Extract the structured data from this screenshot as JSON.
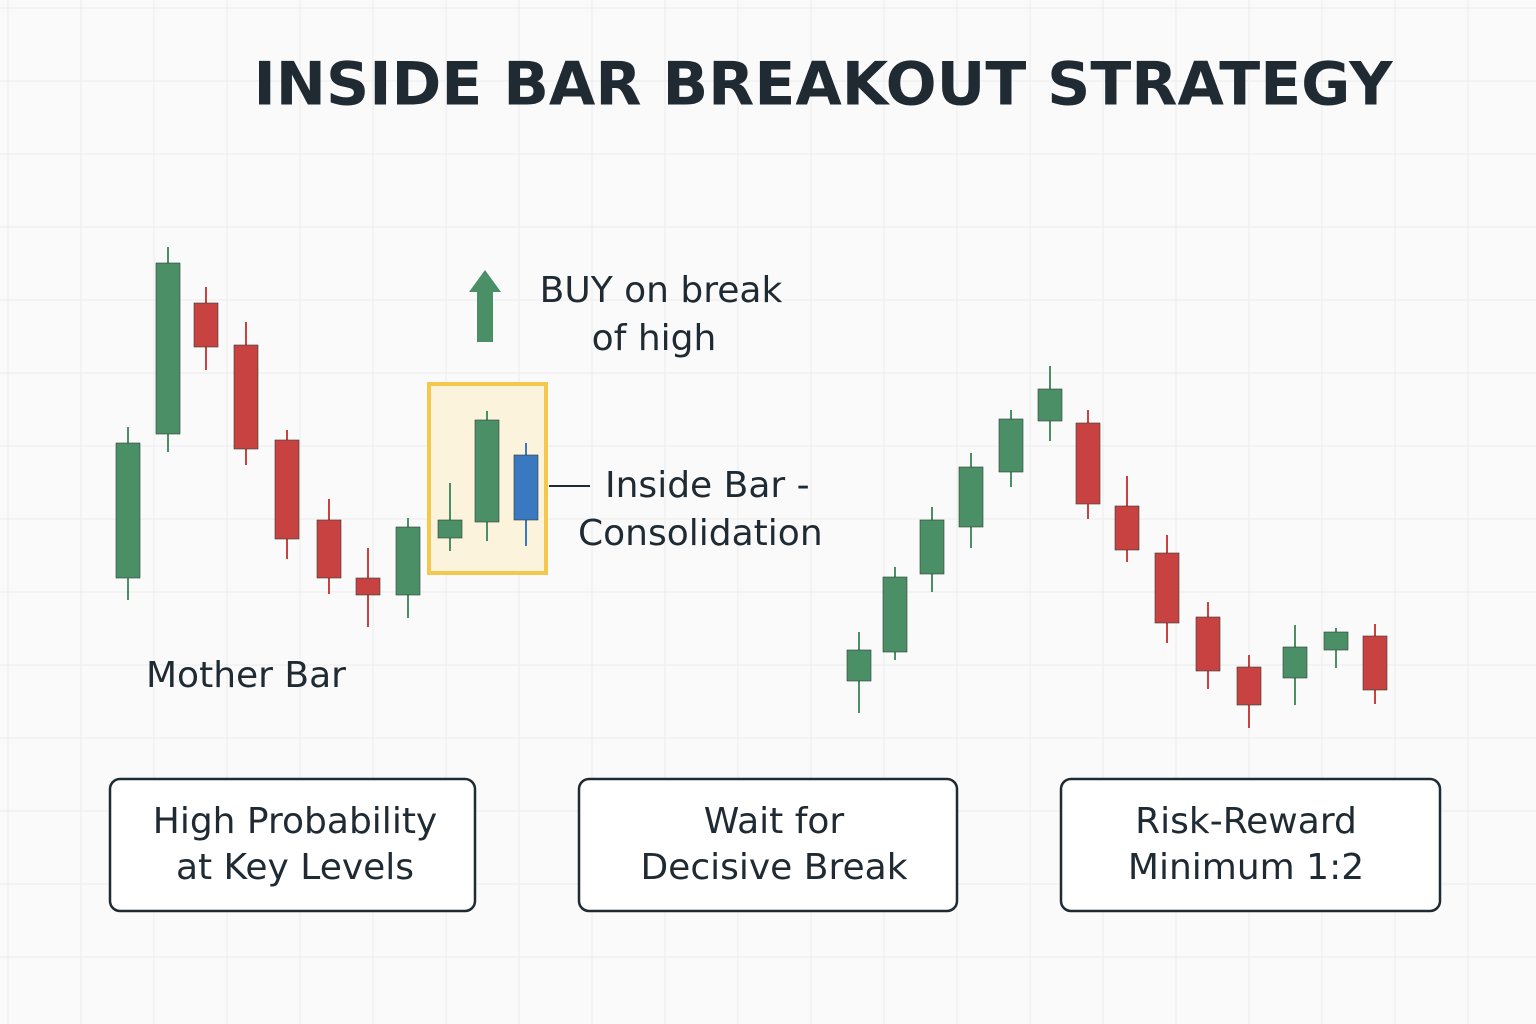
{
  "header": {
    "title": "INSIDE BAR BREAKOUT STRATEGY"
  },
  "annotations": {
    "buy": [
      "BUY on break",
      "of high"
    ],
    "inside_bar": [
      "Inside Bar -",
      "Consolidation"
    ],
    "mother_bar": "Mother Bar"
  },
  "boxes": [
    [
      "High Probability",
      "at Key Levels"
    ],
    [
      "Wait for",
      "Decisive Break"
    ],
    [
      "Risk-Reward",
      "Minimum 1:2"
    ]
  ]
}
